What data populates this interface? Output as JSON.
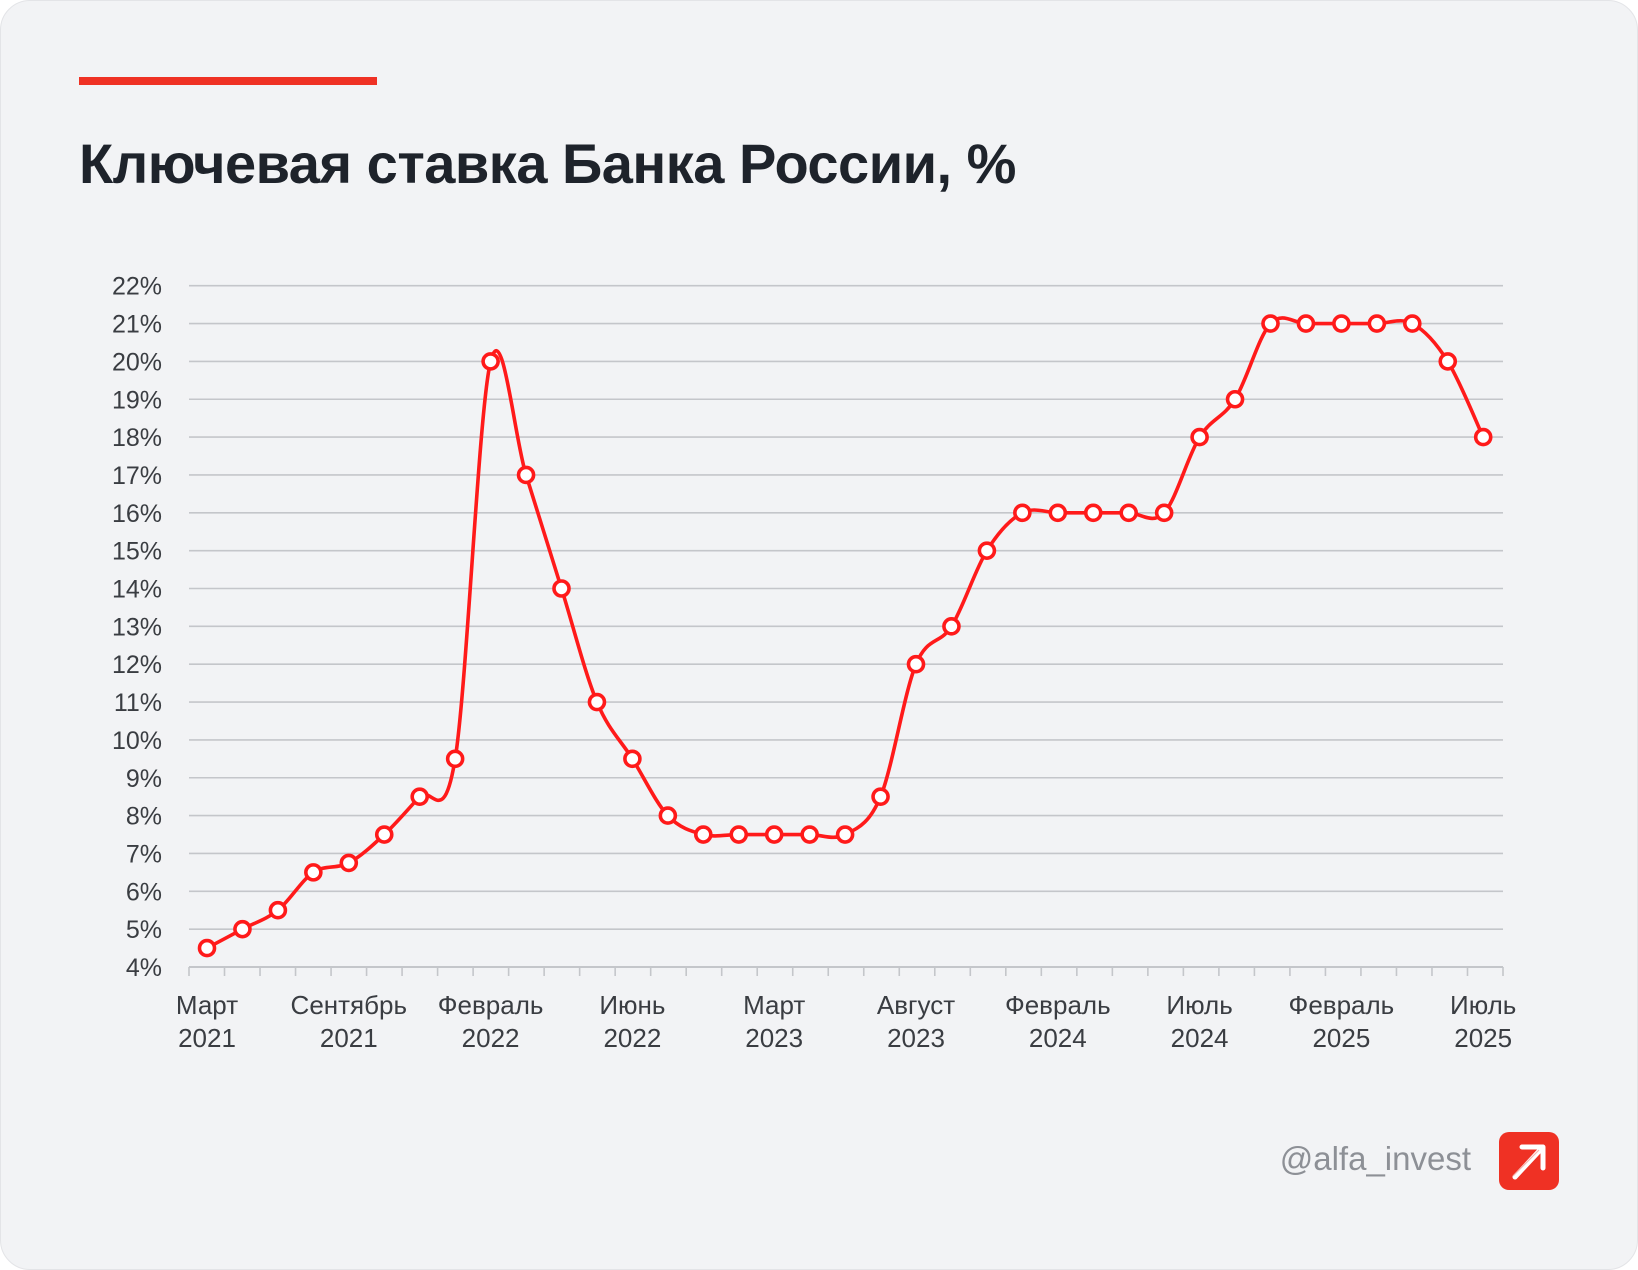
{
  "title": "Ключевая ставка Банка России, %",
  "footer": {
    "handle": "@alfa_invest",
    "logo_icon": "arrow-up-right-icon"
  },
  "colors": {
    "accent": "#ef3124",
    "line": "#ff1a1a",
    "grid": "#c4c6ca",
    "background": "#f2f3f5",
    "title": "#1e232b"
  },
  "chart_data": {
    "type": "line",
    "title": "Ключевая ставка Банка России, %",
    "xlabel": "",
    "ylabel": "",
    "ylim": [
      4,
      22
    ],
    "grid": true,
    "y_ticks": [
      "4%",
      "5%",
      "6%",
      "7%",
      "8%",
      "9%",
      "10%",
      "11%",
      "12%",
      "13%",
      "14%",
      "15%",
      "16%",
      "17%",
      "18%",
      "19%",
      "20%",
      "21%",
      "22%"
    ],
    "x_labels": [
      {
        "index": 0,
        "month": "Март",
        "year": "2021"
      },
      {
        "index": 4,
        "month": "Сентябрь",
        "year": "2021"
      },
      {
        "index": 8,
        "month": "Февраль",
        "year": "2022"
      },
      {
        "index": 12,
        "month": "Июнь",
        "year": "2022"
      },
      {
        "index": 16,
        "month": "Март",
        "year": "2023"
      },
      {
        "index": 20,
        "month": "Август",
        "year": "2023"
      },
      {
        "index": 24,
        "month": "Февраль",
        "year": "2024"
      },
      {
        "index": 28,
        "month": "Июль",
        "year": "2024"
      },
      {
        "index": 32,
        "month": "Февраль",
        "year": "2025"
      },
      {
        "index": 36,
        "month": "Июль",
        "year": "2025"
      }
    ],
    "series": [
      {
        "name": "Ключевая ставка",
        "values": [
          4.5,
          5,
          5.5,
          6.5,
          6.75,
          7.5,
          8.5,
          9.5,
          20,
          17,
          14,
          11,
          9.5,
          8,
          7.5,
          7.5,
          7.5,
          7.5,
          7.5,
          8.5,
          12,
          13,
          15,
          16,
          16,
          16,
          16,
          16,
          18,
          19,
          21,
          21,
          21,
          21,
          21,
          20,
          18
        ]
      }
    ]
  }
}
